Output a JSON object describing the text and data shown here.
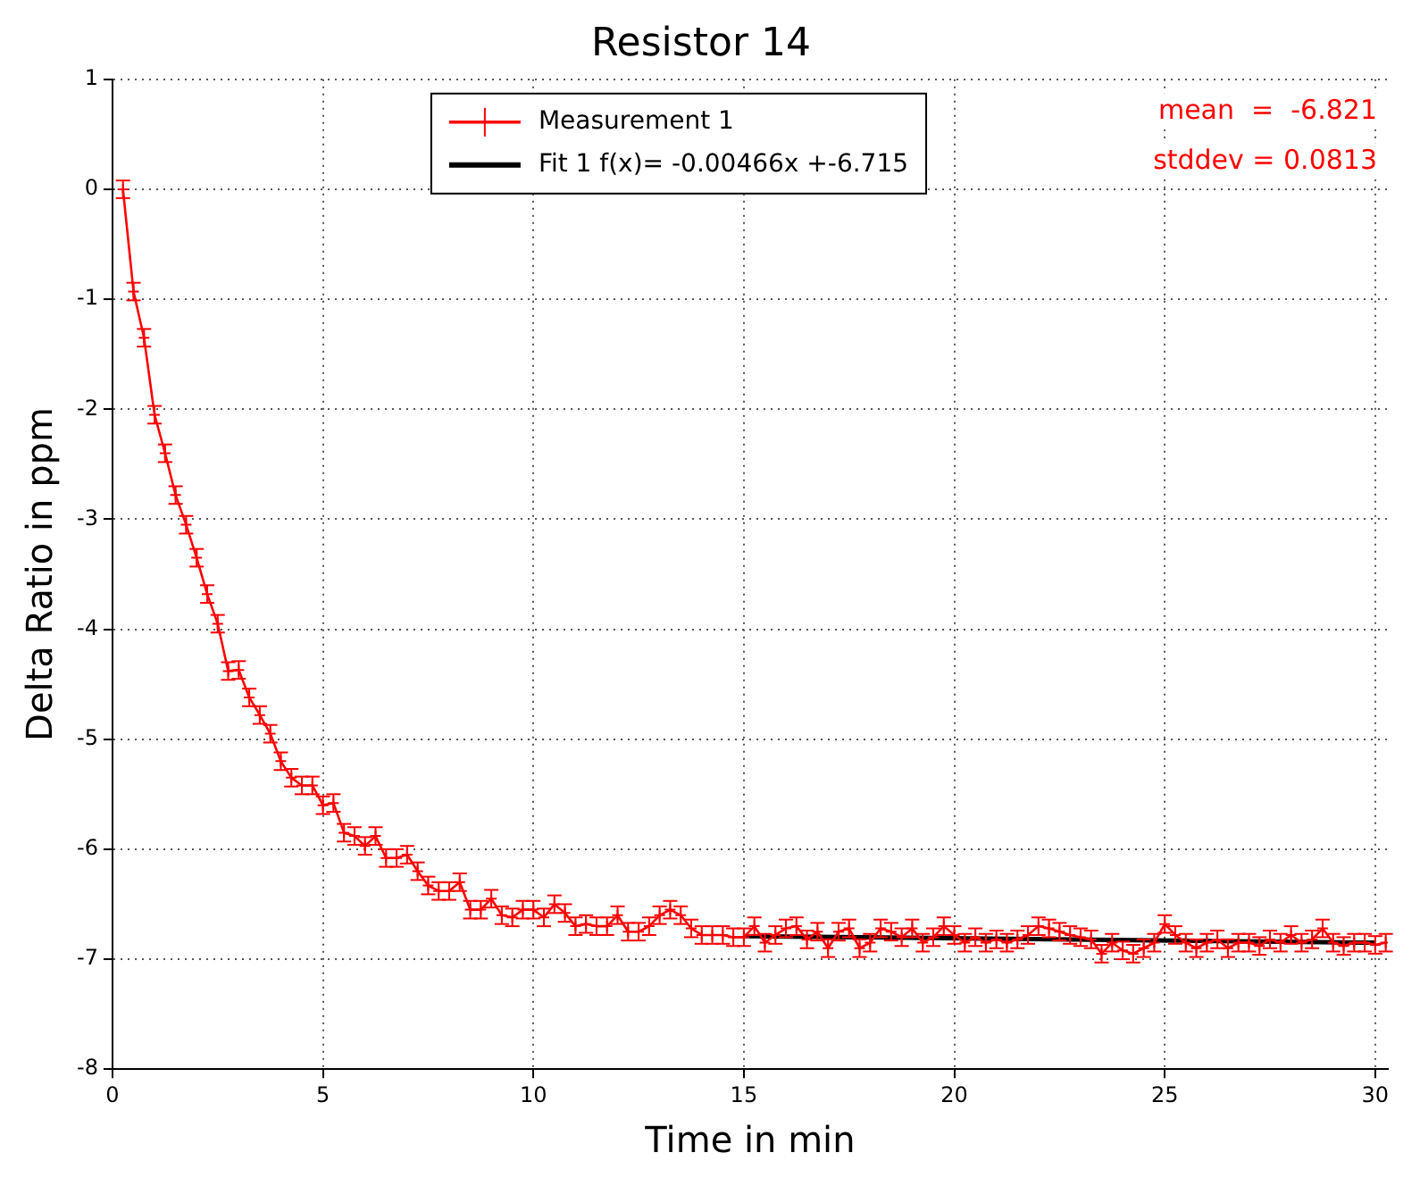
{
  "chart_data": {
    "type": "line",
    "title": "Resistor 14",
    "xlabel": "Time in min",
    "ylabel": "Delta Ratio in ppm",
    "xlim": [
      0,
      30.3
    ],
    "xticks": [
      0,
      5,
      10,
      15,
      20,
      25,
      30
    ],
    "ylim": [
      -8,
      1
    ],
    "yticks": [
      -8,
      -7,
      -6,
      -5,
      -4,
      -3,
      -2,
      -1,
      0,
      1
    ],
    "grid": true,
    "legend": "top",
    "line_style": "solid",
    "annotations": [
      "mean  =  -6.821",
      "stddev = 0.0813"
    ],
    "series": [
      {
        "name": "Measurement 1",
        "color": "#ff0000",
        "marker": "cross",
        "x": [
          0.25,
          0.5,
          0.75,
          1,
          1.25,
          1.5,
          1.75,
          2,
          2.25,
          2.5,
          2.75,
          3,
          3.25,
          3.5,
          3.75,
          4,
          4.25,
          4.5,
          4.75,
          5,
          5.25,
          5.5,
          5.75,
          6,
          6.25,
          6.5,
          6.75,
          7,
          7.25,
          7.5,
          7.75,
          8,
          8.25,
          8.5,
          8.75,
          9,
          9.25,
          9.5,
          9.75,
          10,
          10.25,
          10.5,
          10.75,
          11,
          11.25,
          11.5,
          11.75,
          12,
          12.25,
          12.5,
          12.75,
          13,
          13.25,
          13.5,
          13.75,
          14,
          14.25,
          14.5,
          14.75,
          15,
          15.25,
          15.5,
          15.75,
          16,
          16.25,
          16.5,
          16.75,
          17,
          17.25,
          17.5,
          17.75,
          18,
          18.25,
          18.5,
          18.75,
          19,
          19.25,
          19.5,
          19.75,
          20,
          20.25,
          20.5,
          20.75,
          21,
          21.25,
          21.5,
          21.75,
          22,
          22.25,
          22.5,
          22.75,
          23,
          23.25,
          23.5,
          23.75,
          24,
          24.25,
          24.5,
          24.75,
          25,
          25.25,
          25.5,
          25.75,
          26,
          26.25,
          26.5,
          26.75,
          27,
          27.25,
          27.5,
          27.75,
          28,
          28.25,
          28.5,
          28.75,
          29,
          29.25,
          29.5,
          29.75,
          30,
          30.25
        ],
        "values": [
          0,
          -0.93,
          -1.35,
          -2.05,
          -2.4,
          -2.78,
          -3.05,
          -3.35,
          -3.68,
          -3.95,
          -4.38,
          -4.37,
          -4.62,
          -4.78,
          -4.95,
          -5.2,
          -5.35,
          -5.42,
          -5.42,
          -5.6,
          -5.58,
          -5.85,
          -5.88,
          -5.97,
          -5.88,
          -6.08,
          -6.08,
          -6.05,
          -6.2,
          -6.33,
          -6.38,
          -6.38,
          -6.3,
          -6.55,
          -6.55,
          -6.45,
          -6.6,
          -6.62,
          -6.55,
          -6.55,
          -6.62,
          -6.5,
          -6.58,
          -6.7,
          -6.68,
          -6.7,
          -6.7,
          -6.6,
          -6.75,
          -6.75,
          -6.7,
          -6.6,
          -6.55,
          -6.6,
          -6.72,
          -6.78,
          -6.78,
          -6.78,
          -6.8,
          -6.8,
          -6.7,
          -6.85,
          -6.78,
          -6.72,
          -6.7,
          -6.82,
          -6.75,
          -6.9,
          -6.75,
          -6.72,
          -6.9,
          -6.85,
          -6.72,
          -6.75,
          -6.8,
          -6.72,
          -6.85,
          -6.8,
          -6.7,
          -6.78,
          -6.85,
          -6.8,
          -6.85,
          -6.82,
          -6.85,
          -6.82,
          -6.78,
          -6.7,
          -6.72,
          -6.75,
          -6.78,
          -6.8,
          -6.82,
          -6.95,
          -6.85,
          -6.92,
          -6.95,
          -6.9,
          -6.85,
          -6.68,
          -6.78,
          -6.85,
          -6.9,
          -6.85,
          -6.82,
          -6.9,
          -6.85,
          -6.85,
          -6.88,
          -6.82,
          -6.85,
          -6.78,
          -6.85,
          -6.82,
          -6.72,
          -6.85,
          -6.88,
          -6.85,
          -6.85,
          -6.87,
          -6.85
        ],
        "errors": [
          0.08,
          0.08,
          0.08,
          0.08,
          0.08,
          0.08,
          0.08,
          0.08,
          0.08,
          0.08,
          0.08,
          0.08,
          0.08,
          0.08,
          0.08,
          0.08,
          0.08,
          0.08,
          0.08,
          0.08,
          0.08,
          0.08,
          0.08,
          0.08,
          0.08,
          0.08,
          0.08,
          0.08,
          0.08,
          0.08,
          0.08,
          0.08,
          0.08,
          0.08,
          0.08,
          0.08,
          0.08,
          0.08,
          0.08,
          0.08,
          0.08,
          0.08,
          0.08,
          0.08,
          0.08,
          0.08,
          0.08,
          0.08,
          0.08,
          0.08,
          0.08,
          0.08,
          0.08,
          0.08,
          0.08,
          0.08,
          0.08,
          0.08,
          0.08,
          0.08,
          0.08,
          0.08,
          0.08,
          0.08,
          0.08,
          0.08,
          0.08,
          0.08,
          0.08,
          0.08,
          0.08,
          0.08,
          0.08,
          0.08,
          0.08,
          0.08,
          0.08,
          0.08,
          0.08,
          0.08,
          0.08,
          0.08,
          0.08,
          0.08,
          0.08,
          0.08,
          0.08,
          0.08,
          0.08,
          0.08,
          0.08,
          0.08,
          0.08,
          0.08,
          0.08,
          0.08,
          0.08,
          0.08,
          0.08,
          0.08,
          0.08,
          0.08,
          0.08,
          0.08,
          0.08,
          0.08,
          0.08,
          0.08,
          0.08,
          0.08,
          0.08,
          0.08,
          0.08,
          0.08,
          0.08,
          0.08,
          0.08,
          0.08,
          0.08,
          0.08,
          0.08
        ]
      },
      {
        "name": "Fit 1 f(x)= -0.00466x +-6.715",
        "color": "#000000",
        "marker": "none",
        "x": [
          15,
          30
        ],
        "values": [
          -6.79,
          -6.85
        ]
      }
    ]
  }
}
